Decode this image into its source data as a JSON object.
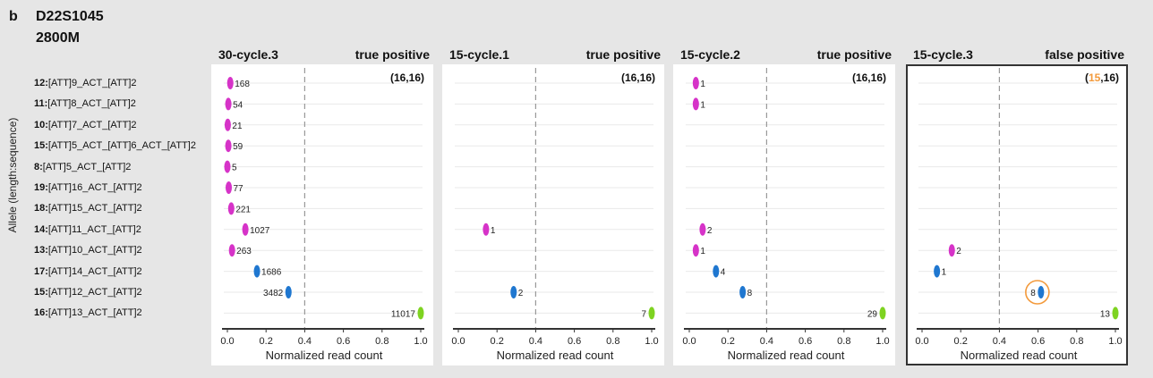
{
  "header": {
    "label": "b",
    "locus": "D22S1045",
    "sample": "2800M"
  },
  "y_axis_title": "Allele (length:sequence)",
  "alleles": [
    {
      "length": "12:",
      "seq": "[ATT]9_ACT_[ATT]2"
    },
    {
      "length": "11:",
      "seq": "[ATT]8_ACT_[ATT]2"
    },
    {
      "length": "10:",
      "seq": "[ATT]7_ACT_[ATT]2"
    },
    {
      "length": "15:",
      "seq": "[ATT]5_ACT_[ATT]6_ACT_[ATT]2"
    },
    {
      "length": "8:",
      "seq": "[ATT]5_ACT_[ATT]2"
    },
    {
      "length": "19:",
      "seq": "[ATT]16_ACT_[ATT]2"
    },
    {
      "length": "18:",
      "seq": "[ATT]15_ACT_[ATT]2"
    },
    {
      "length": "14:",
      "seq": "[ATT]11_ACT_[ATT]2"
    },
    {
      "length": "13:",
      "seq": "[ATT]10_ACT_[ATT]2"
    },
    {
      "length": "17:",
      "seq": "[ATT]14_ACT_[ATT]2"
    },
    {
      "length": "15:",
      "seq": "[ATT]12_ACT_[ATT]2"
    },
    {
      "length": "16:",
      "seq": "[ATT]13_ACT_[ATT]2"
    }
  ],
  "colors": {
    "stutter": "#d633c8",
    "minus_one": "#1f77d0",
    "main": "#7ed321",
    "highlight": "#f39a3c",
    "dashed": "#999999"
  },
  "chart_data": [
    {
      "type": "scatter",
      "name": "30-cycle.3",
      "status": "true positive",
      "call": {
        "a": "16",
        "b": "16",
        "a_highlight": false
      },
      "xlabel": "Normalized read count",
      "xlim": [
        0,
        1
      ],
      "threshold": 0.4,
      "xticks": [
        "0.0",
        "0.2",
        "0.4",
        "0.6",
        "0.8",
        "1.0"
      ],
      "label_side": "right",
      "points": [
        {
          "row": 0,
          "x": 0.015,
          "label": "168",
          "color": "stutter"
        },
        {
          "row": 1,
          "x": 0.005,
          "label": "54",
          "color": "stutter"
        },
        {
          "row": 2,
          "x": 0.002,
          "label": "21",
          "color": "stutter"
        },
        {
          "row": 3,
          "x": 0.005,
          "label": "59",
          "color": "stutter"
        },
        {
          "row": 4,
          "x": 0.0,
          "label": "5",
          "color": "stutter"
        },
        {
          "row": 5,
          "x": 0.007,
          "label": "77",
          "color": "stutter"
        },
        {
          "row": 6,
          "x": 0.02,
          "label": "221",
          "color": "stutter"
        },
        {
          "row": 7,
          "x": 0.093,
          "label": "1027",
          "color": "stutter"
        },
        {
          "row": 8,
          "x": 0.024,
          "label": "263",
          "color": "stutter"
        },
        {
          "row": 9,
          "x": 0.153,
          "label": "1686",
          "color": "minus_one"
        },
        {
          "row": 10,
          "x": 0.316,
          "label": "3482",
          "color": "minus_one",
          "label_side": "left"
        },
        {
          "row": 11,
          "x": 1.0,
          "label": "11017",
          "color": "main",
          "label_side": "left"
        }
      ]
    },
    {
      "type": "scatter",
      "name": "15-cycle.1",
      "status": "true positive",
      "call": {
        "a": "16",
        "b": "16",
        "a_highlight": false
      },
      "xlabel": "Normalized read count",
      "xlim": [
        0,
        1
      ],
      "threshold": 0.4,
      "xticks": [
        "0.0",
        "0.2",
        "0.4",
        "0.6",
        "0.8",
        "1.0"
      ],
      "points": [
        {
          "row": 7,
          "x": 0.143,
          "label": "1",
          "color": "stutter"
        },
        {
          "row": 10,
          "x": 0.286,
          "label": "2",
          "color": "minus_one"
        },
        {
          "row": 11,
          "x": 1.0,
          "label": "7",
          "color": "main",
          "label_side": "left"
        }
      ]
    },
    {
      "type": "scatter",
      "name": "15-cycle.2",
      "status": "true positive",
      "call": {
        "a": "16",
        "b": "16",
        "a_highlight": false
      },
      "xlabel": "Normalized read count",
      "xlim": [
        0,
        1
      ],
      "threshold": 0.4,
      "xticks": [
        "0.0",
        "0.2",
        "0.4",
        "0.6",
        "0.8",
        "1.0"
      ],
      "points": [
        {
          "row": 0,
          "x": 0.034,
          "label": "1",
          "color": "stutter"
        },
        {
          "row": 1,
          "x": 0.034,
          "label": "1",
          "color": "stutter"
        },
        {
          "row": 7,
          "x": 0.069,
          "label": "2",
          "color": "stutter"
        },
        {
          "row": 8,
          "x": 0.034,
          "label": "1",
          "color": "stutter"
        },
        {
          "row": 9,
          "x": 0.138,
          "label": "4",
          "color": "minus_one"
        },
        {
          "row": 10,
          "x": 0.276,
          "label": "8",
          "color": "minus_one"
        },
        {
          "row": 11,
          "x": 1.0,
          "label": "29",
          "color": "main",
          "label_side": "left"
        }
      ]
    },
    {
      "type": "scatter",
      "name": "15-cycle.3",
      "status": "false positive",
      "call": {
        "a": "15",
        "b": "16",
        "a_highlight": true
      },
      "xlabel": "Normalized read count",
      "xlim": [
        0,
        1
      ],
      "threshold": 0.4,
      "xticks": [
        "0.0",
        "0.2",
        "0.4",
        "0.6",
        "0.8",
        "1.0"
      ],
      "points": [
        {
          "row": 8,
          "x": 0.154,
          "label": "2",
          "color": "stutter"
        },
        {
          "row": 9,
          "x": 0.077,
          "label": "1",
          "color": "minus_one"
        },
        {
          "row": 10,
          "x": 0.615,
          "label": "8",
          "color": "minus_one",
          "label_side": "left",
          "circled": true
        },
        {
          "row": 11,
          "x": 1.0,
          "label": "13",
          "color": "main",
          "label_side": "left"
        }
      ]
    }
  ]
}
